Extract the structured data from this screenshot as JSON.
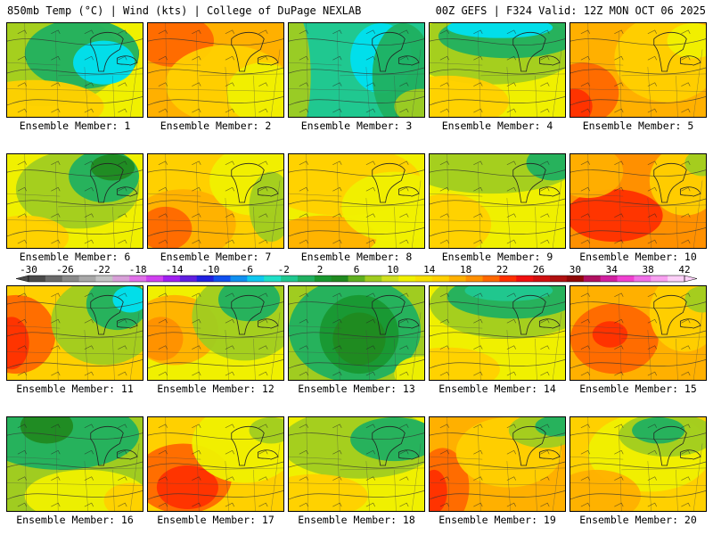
{
  "header": {
    "left": "850mb Temp (°C) | Wind (kts) | College of DuPage NEXLAB",
    "right": "00Z GEFS | F324 Valid: 12Z MON OCT 06 2025"
  },
  "members": [
    {
      "label": "Ensemble Member: 1"
    },
    {
      "label": "Ensemble Member: 2"
    },
    {
      "label": "Ensemble Member: 3"
    },
    {
      "label": "Ensemble Member: 4"
    },
    {
      "label": "Ensemble Member: 5"
    },
    {
      "label": "Ensemble Member: 6"
    },
    {
      "label": "Ensemble Member: 7"
    },
    {
      "label": "Ensemble Member: 8"
    },
    {
      "label": "Ensemble Member: 9"
    },
    {
      "label": "Ensemble Member: 10"
    },
    {
      "label": "Ensemble Member: 11"
    },
    {
      "label": "Ensemble Member: 12"
    },
    {
      "label": "Ensemble Member: 13"
    },
    {
      "label": "Ensemble Member: 14"
    },
    {
      "label": "Ensemble Member: 15"
    },
    {
      "label": "Ensemble Member: 16"
    },
    {
      "label": "Ensemble Member: 17"
    },
    {
      "label": "Ensemble Member: 18"
    },
    {
      "label": "Ensemble Member: 19"
    },
    {
      "label": "Ensemble Member: 20"
    }
  ],
  "colorbar": {
    "labels": [
      "-30",
      "-26",
      "-22",
      "-18",
      "-14",
      "-10",
      "-6",
      "-2",
      "2",
      "6",
      "10",
      "14",
      "18",
      "22",
      "26",
      "30",
      "34",
      "38",
      "42"
    ],
    "colors": [
      "#4a4a4a",
      "#6a6a6a",
      "#8a8a8a",
      "#a8a8a8",
      "#c4c4c4",
      "#d8a0d8",
      "#e070e8",
      "#d040f0",
      "#a020f0",
      "#6020e0",
      "#2020e0",
      "#1050f0",
      "#1090f0",
      "#10c8f0",
      "#20e0c8",
      "#20c890",
      "#20b060",
      "#189830",
      "#208a20",
      "#60b020",
      "#a0cc20",
      "#d0e020",
      "#f0f000",
      "#f8e000",
      "#ffd000",
      "#ffb000",
      "#ff9000",
      "#ff6800",
      "#ff3000",
      "#f01010",
      "#d01010",
      "#b01010",
      "#900808",
      "#b01060",
      "#d020a0",
      "#f040d0",
      "#f070e8",
      "#f8a0f0",
      "#fcd0f8"
    ]
  },
  "colors": {
    "teal": "#00e0f0",
    "green": "#189830",
    "yellow": "#f0f000",
    "orange": "#ff9000",
    "red": "#ff3000"
  }
}
